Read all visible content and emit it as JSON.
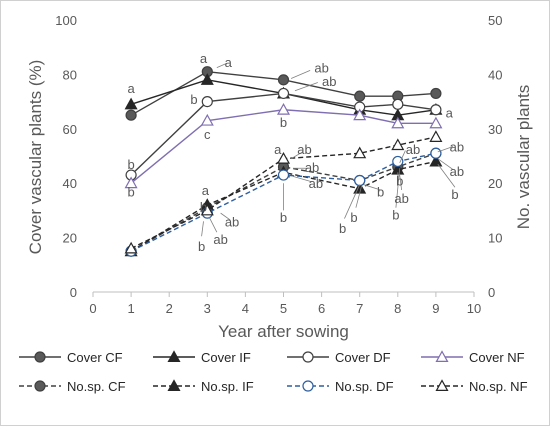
{
  "chart_data": {
    "type": "line",
    "xlabel": "Year after sowing",
    "ylabel_left": "Cover vascular plants (%)",
    "ylabel_right": "No. vascular plants",
    "xlim": [
      0,
      10
    ],
    "ylim_left": [
      0,
      100
    ],
    "ylim_right": [
      0,
      50
    ],
    "x_ticks": [
      0,
      1,
      2,
      3,
      4,
      5,
      6,
      7,
      8,
      9,
      10
    ],
    "y_ticks_left": [
      0,
      20,
      40,
      60,
      80,
      100
    ],
    "y_ticks_right": [
      0,
      10,
      20,
      30,
      40,
      50
    ],
    "grid": false,
    "legend_position": "bottom",
    "series": [
      {
        "name": "Cover CF",
        "axis": "left",
        "line": "solid",
        "marker": "circle",
        "fill": "#595959",
        "color": "#404040",
        "x": [
          1,
          3,
          5,
          7,
          8,
          9
        ],
        "y": [
          65,
          81,
          78,
          72,
          72,
          73
        ]
      },
      {
        "name": "Cover IF",
        "axis": "left",
        "line": "solid",
        "marker": "triangle",
        "fill": "#262626",
        "color": "#262626",
        "x": [
          1,
          3,
          5,
          7,
          8,
          9
        ],
        "y": [
          69,
          78,
          73,
          67,
          65,
          67
        ]
      },
      {
        "name": "Cover DF",
        "axis": "left",
        "line": "solid",
        "marker": "circle",
        "fill": "#ffffff",
        "color": "#404040",
        "x": [
          1,
          3,
          5,
          7,
          8,
          9
        ],
        "y": [
          43,
          70,
          73,
          68,
          69,
          67
        ]
      },
      {
        "name": "Cover NF",
        "axis": "left",
        "line": "solid",
        "marker": "triangle",
        "fill": "#ffffff",
        "color": "#7f6fb0",
        "x": [
          1,
          3,
          5,
          7,
          8,
          9
        ],
        "y": [
          40,
          63,
          67,
          65,
          62,
          62
        ]
      },
      {
        "name": "No.sp. CF",
        "axis": "right",
        "line": "dashed",
        "marker": "circle",
        "fill": "#595959",
        "color": "#404040",
        "x": [
          1,
          3,
          5,
          7,
          8,
          9
        ],
        "y": [
          7.5,
          15.5,
          23,
          20.5,
          23,
          25.5
        ]
      },
      {
        "name": "No.sp. IF",
        "axis": "right",
        "line": "dashed",
        "marker": "triangle",
        "fill": "#262626",
        "color": "#262626",
        "x": [
          1,
          3,
          5,
          7,
          8,
          9
        ],
        "y": [
          7.5,
          16,
          22,
          19,
          22.5,
          24
        ]
      },
      {
        "name": "No.sp. DF",
        "axis": "right",
        "line": "dashed",
        "marker": "circle",
        "fill": "#ffffff",
        "color": "#2e5e9e",
        "x": [
          1,
          3,
          5,
          7,
          8,
          9
        ],
        "y": [
          7.5,
          14.5,
          21.5,
          20.5,
          24,
          25.5
        ]
      },
      {
        "name": "No.sp. NF",
        "axis": "right",
        "line": "dashed",
        "marker": "triangle",
        "fill": "#ffffff",
        "color": "#262626",
        "x": [
          1,
          3,
          5,
          7,
          8,
          9
        ],
        "y": [
          8,
          15,
          24.5,
          25.5,
          27,
          28.5
        ]
      }
    ],
    "annotations": [
      {
        "text": "a",
        "x": 1,
        "y": 75
      },
      {
        "text": "b",
        "x": 1,
        "y": 47
      },
      {
        "text": "b",
        "x": 1,
        "y": 37
      },
      {
        "text": "a",
        "x": 2.9,
        "y": 86
      },
      {
        "text": "a",
        "x": 3.55,
        "y": 84.5
      },
      {
        "text": "b",
        "x": 2.65,
        "y": 71
      },
      {
        "text": "c",
        "x": 3.0,
        "y": 58
      },
      {
        "text": "ab",
        "x": 6.0,
        "y": 82.5
      },
      {
        "text": "ab",
        "x": 6.2,
        "y": 77.5
      },
      {
        "text": "b",
        "x": 5.0,
        "y": 62.5
      },
      {
        "text": "a",
        "x": 9.35,
        "y": 66
      },
      {
        "text": "a",
        "x": 2.95,
        "y": 37.5
      },
      {
        "text": "b",
        "x": 2.9,
        "y": 31.5
      },
      {
        "text": "ab",
        "x": 3.65,
        "y": 26
      },
      {
        "text": "b",
        "x": 2.85,
        "y": 17
      },
      {
        "text": "ab",
        "x": 3.35,
        "y": 19.5
      },
      {
        "text": "a",
        "x": 4.85,
        "y": 52.5
      },
      {
        "text": "ab",
        "x": 5.55,
        "y": 52.5
      },
      {
        "text": "ab",
        "x": 5.75,
        "y": 46
      },
      {
        "text": "ab",
        "x": 5.85,
        "y": 40
      },
      {
        "text": "b",
        "x": 5.0,
        "y": 27.5
      },
      {
        "text": "b",
        "x": 6.55,
        "y": 23.5
      },
      {
        "text": "b",
        "x": 6.85,
        "y": 27.5
      },
      {
        "text": "b",
        "x": 7.55,
        "y": 37
      },
      {
        "text": "b",
        "x": 7.95,
        "y": 28.5
      },
      {
        "text": "ab",
        "x": 8.4,
        "y": 52.5
      },
      {
        "text": "b",
        "x": 8.05,
        "y": 41
      },
      {
        "text": "ab",
        "x": 8.1,
        "y": 34.5
      },
      {
        "text": "ab",
        "x": 9.55,
        "y": 53.5
      },
      {
        "text": "ab",
        "x": 9.55,
        "y": 44.5
      },
      {
        "text": "b",
        "x": 9.5,
        "y": 36
      }
    ],
    "leader_lines": [
      {
        "x1": 3.25,
        "y1": 82.5,
        "x2": 3.5,
        "y2": 84
      },
      {
        "x1": 5.2,
        "y1": 78.5,
        "x2": 5.7,
        "y2": 81.5
      },
      {
        "x1": 5.3,
        "y1": 74,
        "x2": 5.9,
        "y2": 77
      },
      {
        "x1": 3.35,
        "y1": 29,
        "x2": 3.6,
        "y2": 26.5
      },
      {
        "x1": 3.05,
        "y1": 27.5,
        "x2": 3.25,
        "y2": 22
      },
      {
        "x1": 2.9,
        "y1": 26,
        "x2": 2.85,
        "y2": 20.5
      },
      {
        "x1": 5.2,
        "y1": 49,
        "x2": 5.5,
        "y2": 51.5
      },
      {
        "x1": 5.25,
        "y1": 45.5,
        "x2": 5.65,
        "y2": 45.5
      },
      {
        "x1": 5.25,
        "y1": 42.5,
        "x2": 5.75,
        "y2": 40.5
      },
      {
        "x1": 5.0,
        "y1": 40,
        "x2": 5.0,
        "y2": 30
      },
      {
        "x1": 7.0,
        "y1": 39.5,
        "x2": 6.6,
        "y2": 27
      },
      {
        "x1": 7.05,
        "y1": 39,
        "x2": 6.9,
        "y2": 31
      },
      {
        "x1": 7.1,
        "y1": 39.5,
        "x2": 7.55,
        "y2": 37.5
      },
      {
        "x1": 8.05,
        "y1": 47.5,
        "x2": 8.2,
        "y2": 52
      },
      {
        "x1": 8.0,
        "y1": 44,
        "x2": 8.0,
        "y2": 40.5
      },
      {
        "x1": 8.05,
        "y1": 43,
        "x2": 8.1,
        "y2": 37.5
      },
      {
        "x1": 8.05,
        "y1": 45.5,
        "x2": 7.95,
        "y2": 31
      },
      {
        "x1": 9.05,
        "y1": 51.5,
        "x2": 9.45,
        "y2": 53.5
      },
      {
        "x1": 9.05,
        "y1": 49,
        "x2": 9.45,
        "y2": 45
      },
      {
        "x1": 9.05,
        "y1": 47,
        "x2": 9.5,
        "y2": 38.5
      }
    ]
  }
}
